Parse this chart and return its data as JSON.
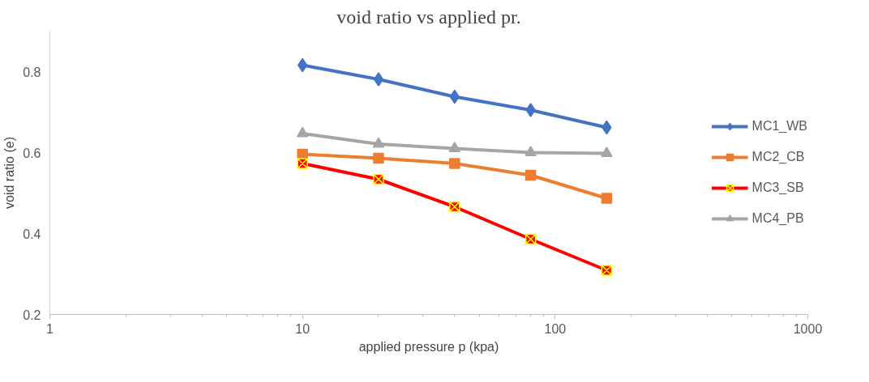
{
  "chart_data": {
    "type": "line",
    "title": "void ratio vs applied pr.",
    "xlabel": "applied pressure p (kpa)",
    "ylabel": "void ratio (e)",
    "x": [
      10,
      20,
      40,
      80,
      160
    ],
    "series": [
      {
        "name": "MC1_WB",
        "color": "#4472c4",
        "marker": "diamond",
        "values": [
          0.816,
          0.781,
          0.738,
          0.705,
          0.662
        ]
      },
      {
        "name": "MC2_CB",
        "color": "#ed7d31",
        "marker": "square",
        "values": [
          0.596,
          0.586,
          0.573,
          0.544,
          0.487
        ]
      },
      {
        "name": "MC3_SB",
        "color": "#ff0000",
        "marker": "cross",
        "values": [
          0.573,
          0.534,
          0.466,
          0.386,
          0.309
        ]
      },
      {
        "name": "MC4_PB",
        "color": "#a5a5a5",
        "marker": "triangle",
        "values": [
          0.647,
          0.621,
          0.61,
          0.6,
          0.598
        ]
      }
    ],
    "log": "x",
    "xlim": [
      1,
      1000
    ],
    "xticks": [
      1,
      10,
      100,
      1000
    ],
    "ylim": [
      0.2,
      0.9
    ],
    "yticks": [
      0.2,
      0.4,
      0.6,
      0.8
    ],
    "grid": false,
    "legend": "right",
    "line_style": "solid"
  }
}
